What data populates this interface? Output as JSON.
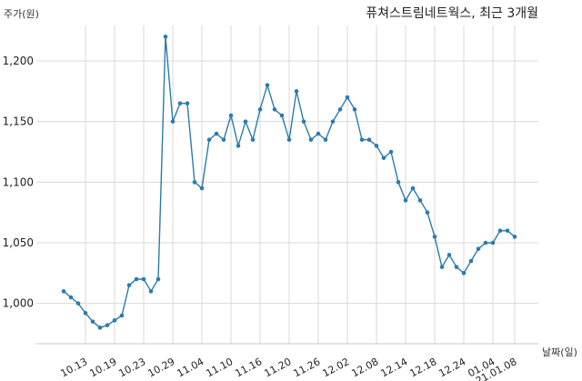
{
  "chart_data": {
    "type": "line",
    "title": "퓨쳐스트림네트웍스, 최근 3개월",
    "ylabel": "주가(원)",
    "xlabel": "날짜(일)",
    "ylim": [
      960,
      1230
    ],
    "yticks": [
      1000,
      1050,
      1100,
      1150,
      1200
    ],
    "ytick_labels": [
      "1,000",
      "1,050",
      "1,100",
      "1,150",
      "1,200"
    ],
    "xtick_labels": [
      "10.13",
      "10.19",
      "10.23",
      "10.29",
      "11.04",
      "11.10",
      "11.16",
      "11.20",
      "11.26",
      "12.02",
      "12.08",
      "12.14",
      "12.18",
      "12.24",
      "01.04",
      "21.01.08"
    ],
    "xtick_index": [
      3,
      7,
      11,
      15,
      19,
      23,
      27,
      31,
      35,
      39,
      43,
      47,
      51,
      55,
      59,
      62
    ],
    "grid": true,
    "line_color": "#2b7bb0",
    "series": [
      {
        "values": [
          1010,
          1005,
          1000,
          992,
          985,
          980,
          982,
          986,
          990,
          1015,
          1020,
          1020,
          1010,
          1020,
          1220,
          1150,
          1165,
          1165,
          1100,
          1095,
          1135,
          1140,
          1135,
          1155,
          1130,
          1150,
          1135,
          1160,
          1180,
          1160,
          1155,
          1135,
          1175,
          1150,
          1135,
          1140,
          1135,
          1150,
          1160,
          1170,
          1160,
          1135,
          1135,
          1130,
          1120,
          1125,
          1100,
          1085,
          1095,
          1085,
          1075,
          1055,
          1030,
          1040,
          1030,
          1025,
          1035,
          1045,
          1050,
          1050,
          1060,
          1060,
          1055
        ]
      }
    ]
  }
}
